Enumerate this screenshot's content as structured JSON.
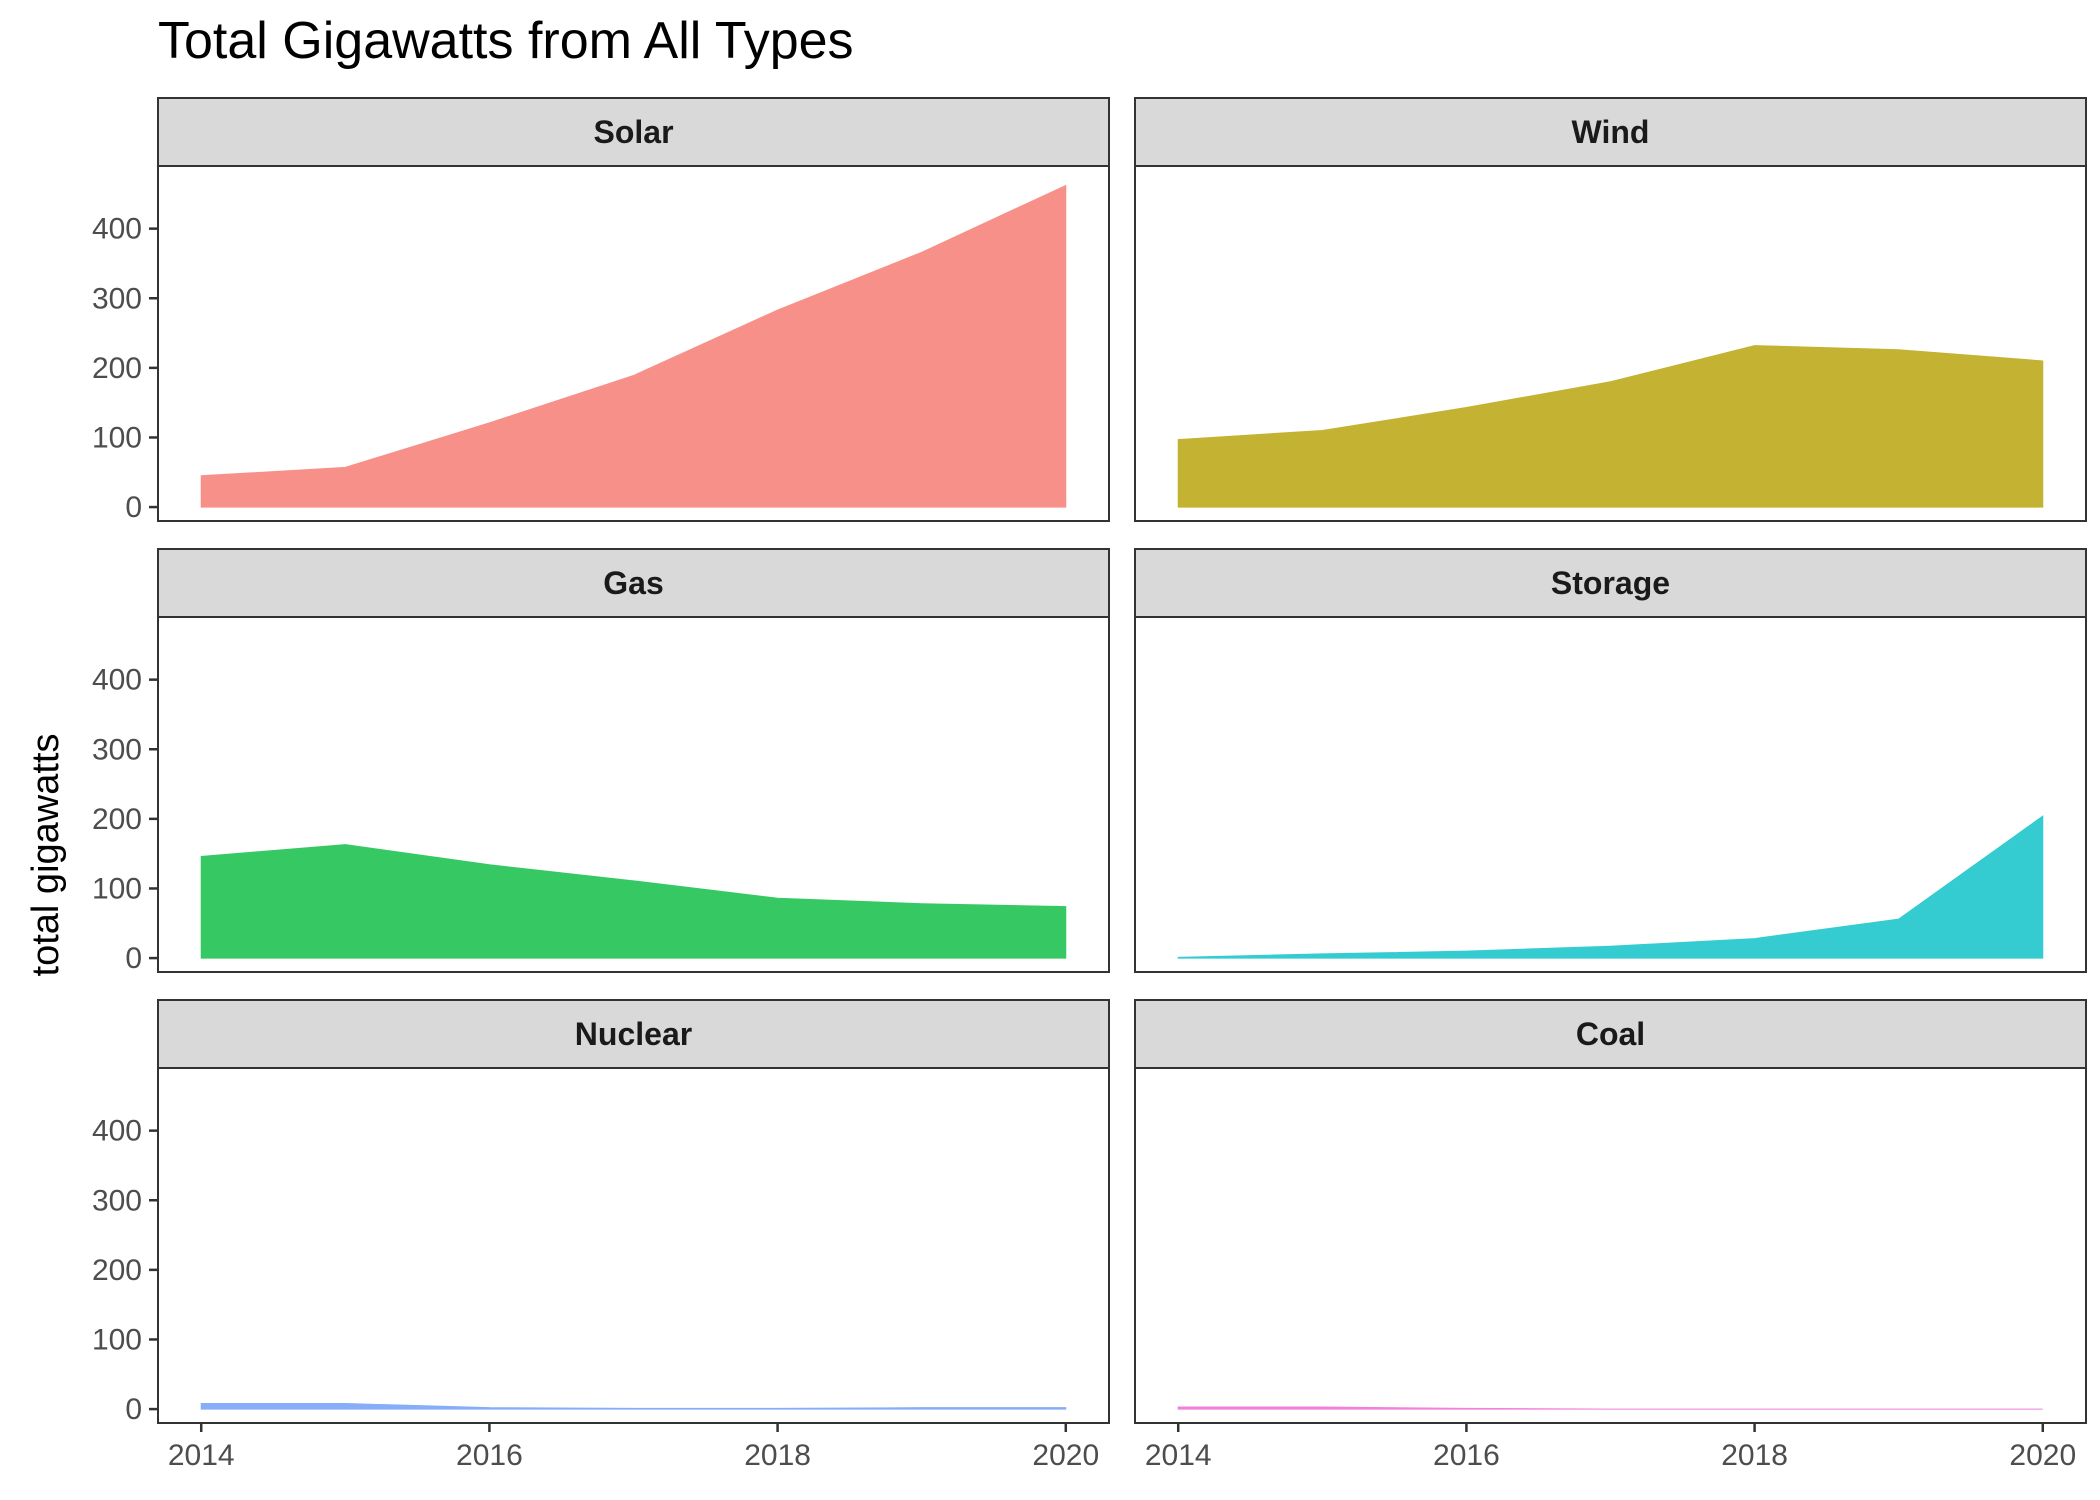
{
  "chart_data": {
    "type": "area",
    "title": "Total Gigawatts from All Types",
    "ylabel": "total gigawatts",
    "xlabel": "",
    "x": [
      2014,
      2015,
      2016,
      2017,
      2018,
      2019,
      2020
    ],
    "xlim": [
      2013.7,
      2020.3
    ],
    "ylim": [
      -20,
      490
    ],
    "xticks": [
      2014,
      2016,
      2018,
      2020
    ],
    "yticks": [
      0,
      100,
      200,
      300,
      400
    ],
    "facet_layout": {
      "rows": 3,
      "cols": 2
    },
    "legend": "none",
    "series": [
      {
        "name": "Solar",
        "color": "#F8908A",
        "values": [
          45,
          57,
          121,
          189,
          283,
          366,
          462
        ]
      },
      {
        "name": "Wind",
        "color": "#C4B233",
        "values": [
          97,
          110,
          143,
          180,
          232,
          226,
          210
        ]
      },
      {
        "name": "Gas",
        "color": "#36C862",
        "values": [
          146,
          163,
          134,
          111,
          86,
          78,
          74
        ]
      },
      {
        "name": "Storage",
        "color": "#34CCD0",
        "values": [
          1,
          6,
          10,
          17,
          28,
          56,
          204
        ]
      },
      {
        "name": "Nuclear",
        "color": "#86ADF7",
        "values": [
          8,
          8,
          2,
          1,
          1,
          2,
          2
        ]
      },
      {
        "name": "Coal",
        "color": "#F27FDD",
        "values": [
          3,
          3,
          1,
          0,
          0,
          0,
          0
        ]
      }
    ]
  }
}
